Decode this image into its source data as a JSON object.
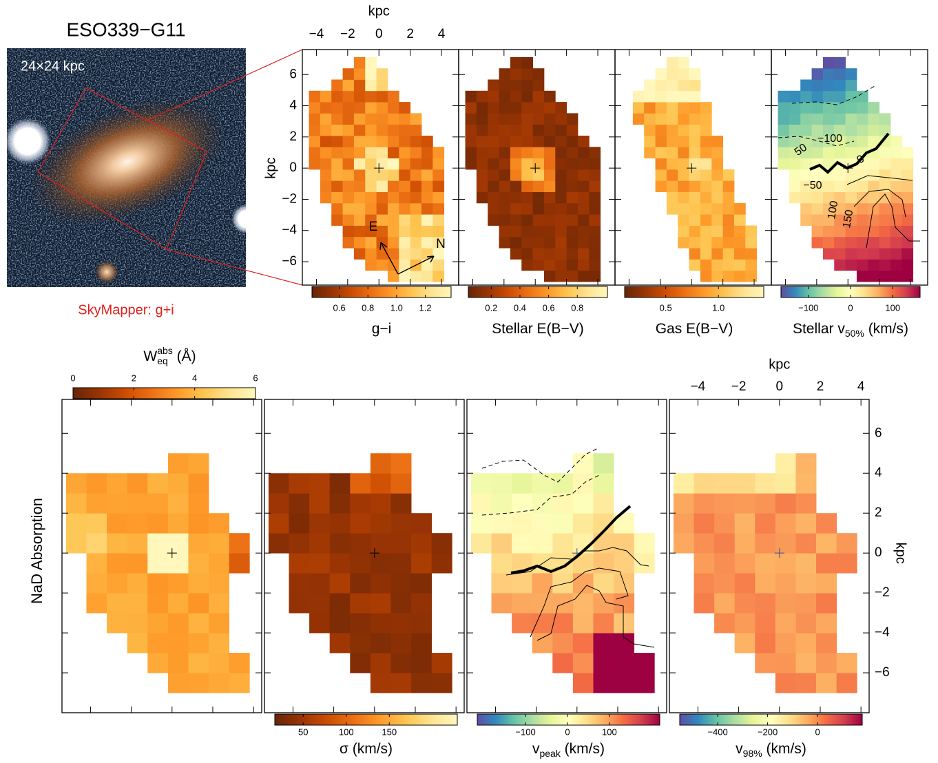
{
  "title": "ESO339−G11",
  "image_scale": "24×24 kpc",
  "image_caption": "SkyMapper: g+i",
  "compass": [
    "E",
    "N"
  ],
  "row_label": "NaD Absorption",
  "chart_data": [
    {
      "type": "map",
      "row": 0,
      "axis_label": "kpc",
      "tick_labels": [
        "top",
        "left"
      ],
      "xlim": [
        -4.9,
        5.1
      ],
      "ylim": [
        -7.5,
        7.6
      ],
      "xticks": [
        {
          "value": -4,
          "label": "−4"
        },
        {
          "value": -2,
          "label": "−2"
        },
        0,
        2,
        4
      ],
      "yticks": [
        {
          "value": -6,
          "label": "−6"
        },
        {
          "value": -4,
          "label": "−4"
        },
        {
          "value": -2,
          "label": "−2"
        },
        0,
        2,
        4,
        6
      ],
      "colorbar": {
        "side": "bottom",
        "label": [
          {
            "text": "g−i"
          }
        ],
        "lim": [
          0.41,
          1.38
        ],
        "ticks": [
          0.6,
          0.8,
          {
            "value": 1.0,
            "label": "1.0"
          },
          1.2
        ],
        "colors": [
          "#662506",
          "#993404",
          "#cc4c02",
          "#ec7014",
          "#fe9929",
          "#fec44f",
          "#fee391",
          "#fff7bc"
        ]
      }
    },
    {
      "type": "map",
      "row": 0,
      "xlim": [
        -4.9,
        5.1
      ],
      "ylim": [
        -7.5,
        7.6
      ],
      "xticks": [
        {
          "value": -4,
          "label": "−4"
        },
        {
          "value": -2,
          "label": "−2"
        },
        0,
        2,
        4
      ],
      "yticks": [
        {
          "value": -6,
          "label": "−6"
        },
        {
          "value": -4,
          "label": "−4"
        },
        {
          "value": -2,
          "label": "−2"
        },
        0,
        2,
        4,
        6
      ],
      "colorbar": {
        "side": "bottom",
        "label": [
          {
            "text": "Stellar E(B−V)"
          }
        ],
        "lim": [
          0.04,
          1.01
        ],
        "ticks": [
          0.2,
          0.4,
          0.6,
          0.8
        ],
        "colors": [
          "#662506",
          "#993404",
          "#cc4c02",
          "#ec7014",
          "#fe9929",
          "#fec44f",
          "#fee391",
          "#fff7bc"
        ]
      }
    },
    {
      "type": "map",
      "row": 0,
      "xlim": [
        -4.9,
        5.1
      ],
      "ylim": [
        -7.5,
        7.6
      ],
      "xticks": [
        {
          "value": -4,
          "label": "−4"
        },
        {
          "value": -2,
          "label": "−2"
        },
        0,
        2,
        4
      ],
      "yticks": [
        {
          "value": -6,
          "label": "−6"
        },
        {
          "value": -4,
          "label": "−4"
        },
        {
          "value": -2,
          "label": "−2"
        },
        0,
        2,
        4,
        6
      ],
      "colorbar": {
        "side": "bottom",
        "label": [
          {
            "text": "Gas E(B−V)"
          }
        ],
        "lim": [
          0.11,
          1.43
        ],
        "ticks": [
          0.5,
          {
            "value": 1.0,
            "label": "1.0"
          }
        ],
        "colors": [
          "#662506",
          "#993404",
          "#cc4c02",
          "#ec7014",
          "#fe9929",
          "#fec44f",
          "#fee391",
          "#fff7bc"
        ]
      }
    },
    {
      "type": "map",
      "row": 0,
      "xlim": [
        -4.9,
        5.1
      ],
      "ylim": [
        -7.5,
        7.6
      ],
      "xticks": [
        {
          "value": -4,
          "label": "−4"
        },
        {
          "value": -2,
          "label": "−2"
        },
        0,
        2,
        4
      ],
      "yticks": [
        {
          "value": -6,
          "label": "−6"
        },
        {
          "value": -4,
          "label": "−4"
        },
        {
          "value": -2,
          "label": "−2"
        },
        0,
        2,
        4,
        6
      ],
      "contour_labels": [
        {
          "value": -100,
          "label": "−100"
        },
        {
          "value": 50,
          "label": "50"
        },
        {
          "value": 0,
          "label": "0"
        },
        {
          "value": -50,
          "label": "−50"
        },
        {
          "value": 100,
          "label": "100"
        },
        {
          "value": 150,
          "label": "150"
        }
      ],
      "colorbar": {
        "side": "bottom",
        "label": [
          {
            "text": "Stellar v"
          },
          {
            "text": "50%",
            "shift": "sub"
          },
          {
            "text": " (km/s)"
          }
        ],
        "lim": [
          -165,
          165
        ],
        "ticks": [
          {
            "value": -100,
            "label": "−100"
          },
          0,
          100
        ],
        "colors": [
          "#5e4fa2",
          "#3288bd",
          "#66c2a5",
          "#abdda4",
          "#e6f598",
          "#ffffbf",
          "#fee08b",
          "#fdae61",
          "#f46d43",
          "#d53e4f",
          "#9e0142"
        ]
      }
    },
    {
      "type": "map",
      "row": 1,
      "xlim": [
        -5.4,
        4.4
      ],
      "ylim": [
        -8.0,
        7.7
      ],
      "xticks": [
        {
          "value": -4,
          "label": "−4"
        },
        {
          "value": -2,
          "label": "−2"
        },
        0,
        2,
        4
      ],
      "yticks": [
        {
          "value": -6,
          "label": "−6"
        },
        {
          "value": -4,
          "label": "−4"
        },
        {
          "value": -2,
          "label": "−2"
        },
        0,
        2,
        4,
        6
      ],
      "colorbar": {
        "side": "top",
        "label": [
          {
            "text": "W"
          },
          {
            "text": "eq",
            "shift": "sub"
          },
          {
            "text": "abs",
            "shift": "super"
          },
          {
            "text": " (Å)"
          }
        ],
        "lim": [
          0,
          6
        ],
        "ticks": [
          0,
          2,
          4,
          6
        ],
        "colors": [
          "#662506",
          "#993404",
          "#cc4c02",
          "#ec7014",
          "#fe9929",
          "#fec44f",
          "#fee391",
          "#fff7bc"
        ]
      }
    },
    {
      "type": "map",
      "row": 1,
      "xlim": [
        -5.4,
        4.4
      ],
      "ylim": [
        -8.0,
        7.7
      ],
      "xticks": [
        {
          "value": -4,
          "label": "−4"
        },
        {
          "value": -2,
          "label": "−2"
        },
        0,
        2,
        4
      ],
      "yticks": [
        {
          "value": -6,
          "label": "−6"
        },
        {
          "value": -4,
          "label": "−4"
        },
        {
          "value": -2,
          "label": "−2"
        },
        0,
        2,
        4,
        6
      ],
      "colorbar": {
        "side": "bottom",
        "label": [
          {
            "text": "σ (km/s)"
          }
        ],
        "lim": [
          17,
          229
        ],
        "ticks": [
          50,
          100,
          150
        ],
        "colors": [
          "#662506",
          "#993404",
          "#cc4c02",
          "#ec7014",
          "#fe9929",
          "#fec44f",
          "#fee391",
          "#fff7bc"
        ]
      }
    },
    {
      "type": "map",
      "row": 1,
      "xlim": [
        -5.4,
        4.4
      ],
      "ylim": [
        -8.0,
        7.7
      ],
      "xticks": [
        {
          "value": -4,
          "label": "−4"
        },
        {
          "value": -2,
          "label": "−2"
        },
        0,
        2,
        4
      ],
      "yticks": [
        {
          "value": -6,
          "label": "−6"
        },
        {
          "value": -4,
          "label": "−4"
        },
        {
          "value": -2,
          "label": "−2"
        },
        0,
        2,
        4,
        6
      ],
      "colorbar": {
        "side": "bottom",
        "label": [
          {
            "text": "v"
          },
          {
            "text": "peak",
            "shift": "sub"
          },
          {
            "text": " (km/s)"
          }
        ],
        "lim": [
          -215,
          220
        ],
        "ticks": [
          {
            "value": -100,
            "label": "−100"
          },
          0,
          100
        ],
        "colors": [
          "#5e4fa2",
          "#3288bd",
          "#66c2a5",
          "#abdda4",
          "#e6f598",
          "#ffffbf",
          "#fee08b",
          "#fdae61",
          "#f46d43",
          "#d53e4f",
          "#9e0142"
        ]
      }
    },
    {
      "type": "map",
      "row": 1,
      "axis_label": "kpc",
      "tick_labels": [
        "top",
        "right"
      ],
      "xlim": [
        -5.4,
        4.4
      ],
      "ylim": [
        -8.0,
        7.7
      ],
      "xticks": [
        {
          "value": -4,
          "label": "−4"
        },
        {
          "value": -2,
          "label": "−2"
        },
        0,
        2,
        4
      ],
      "yticks": [
        {
          "value": -6,
          "label": "−6"
        },
        {
          "value": -4,
          "label": "−4"
        },
        {
          "value": -2,
          "label": "−2"
        },
        0,
        2,
        4,
        6
      ],
      "colorbar": {
        "side": "bottom",
        "label": [
          {
            "text": "v"
          },
          {
            "text": "98%",
            "shift": "sub"
          },
          {
            "text": " (km/s)"
          }
        ],
        "lim": [
          -552,
          179
        ],
        "ticks": [
          {
            "value": -400,
            "label": "−400"
          },
          {
            "value": -200,
            "label": "−200"
          },
          0
        ],
        "colors": [
          "#5e4fa2",
          "#3288bd",
          "#66c2a5",
          "#abdda4",
          "#e6f598",
          "#ffffbf",
          "#fee08b",
          "#fdae61",
          "#f46d43",
          "#d53e4f",
          "#9e0142"
        ]
      }
    }
  ]
}
